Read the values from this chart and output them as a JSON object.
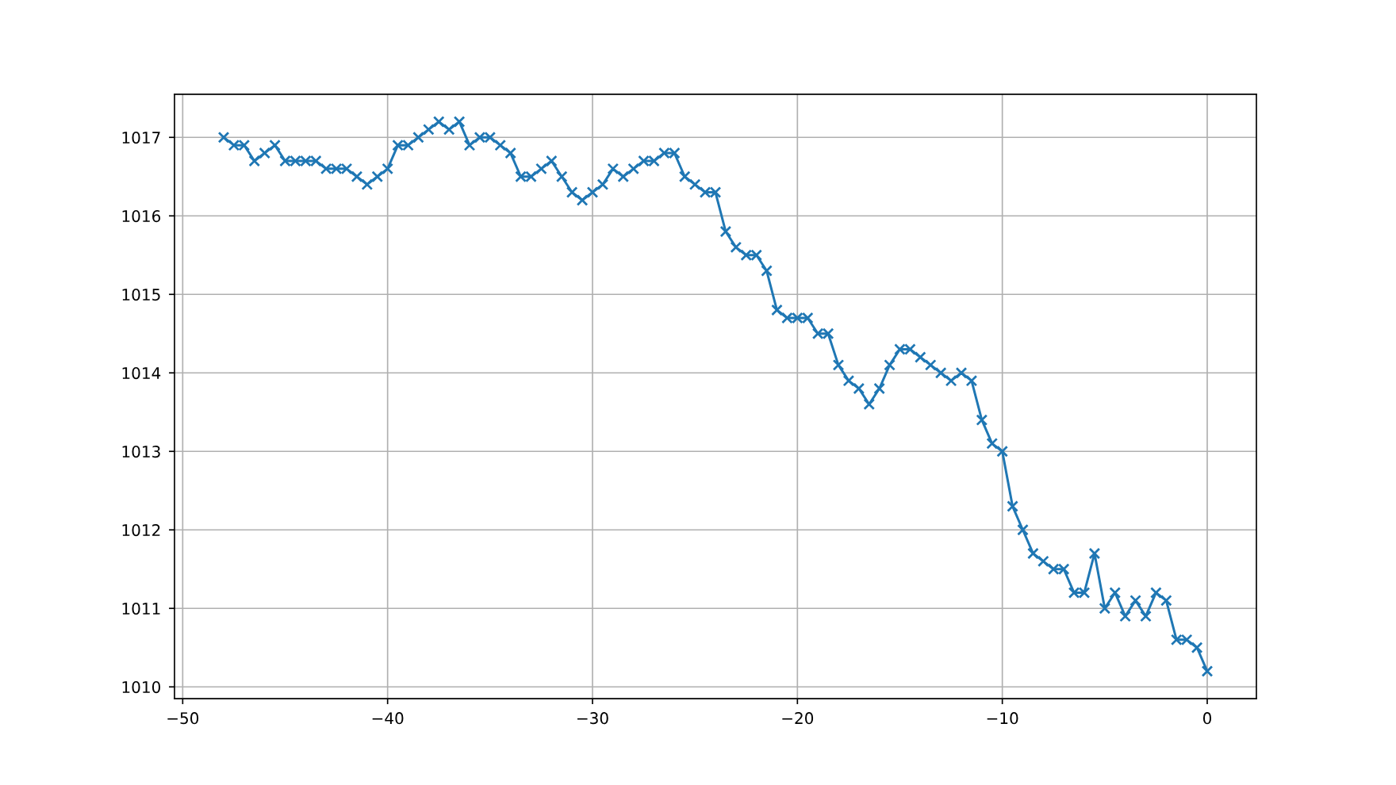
{
  "chart_data": {
    "type": "line",
    "x": [
      -48,
      -47.5,
      -47,
      -46.5,
      -46,
      -45.5,
      -45,
      -44.5,
      -44,
      -43.5,
      -43,
      -42.5,
      -42,
      -41.5,
      -41,
      -40.5,
      -40,
      -39.5,
      -39,
      -38.5,
      -38,
      -37.5,
      -37,
      -36.5,
      -36,
      -35.5,
      -35,
      -34.5,
      -34,
      -33.5,
      -33,
      -32.5,
      -32,
      -31.5,
      -31,
      -30.5,
      -30,
      -29.5,
      -29,
      -28.5,
      -28,
      -27.5,
      -27,
      -26.5,
      -26,
      -25.5,
      -25,
      -24.5,
      -24,
      -23.5,
      -23,
      -22.5,
      -22,
      -21.5,
      -21,
      -20.5,
      -20,
      -19.5,
      -19,
      -18.5,
      -18,
      -17.5,
      -17,
      -16.5,
      -16,
      -15.5,
      -15,
      -14.5,
      -14,
      -13.5,
      -13,
      -12.5,
      -12,
      -11.5,
      -11,
      -10.5,
      -10,
      -9.5,
      -9,
      -8.5,
      -8,
      -7.5,
      -7,
      -6.5,
      -6,
      -5.5,
      -5,
      -4.5,
      -4,
      -3.5,
      -3,
      -2.5,
      -2,
      -1.5,
      -1,
      -0.5,
      0
    ],
    "values": [
      1017.0,
      1016.9,
      1016.9,
      1016.7,
      1016.8,
      1016.9,
      1016.7,
      1016.7,
      1016.7,
      1016.7,
      1016.6,
      1016.6,
      1016.6,
      1016.5,
      1016.4,
      1016.5,
      1016.6,
      1016.9,
      1016.9,
      1017.0,
      1017.1,
      1017.2,
      1017.1,
      1017.2,
      1016.9,
      1017.0,
      1017.0,
      1016.9,
      1016.8,
      1016.5,
      1016.5,
      1016.6,
      1016.7,
      1016.5,
      1016.3,
      1016.2,
      1016.3,
      1016.4,
      1016.6,
      1016.5,
      1016.6,
      1016.7,
      1016.7,
      1016.8,
      1016.8,
      1016.5,
      1016.4,
      1016.3,
      1016.3,
      1015.8,
      1015.6,
      1015.5,
      1015.5,
      1015.3,
      1014.8,
      1014.7,
      1014.7,
      1014.7,
      1014.5,
      1014.5,
      1014.1,
      1013.9,
      1013.8,
      1013.6,
      1013.8,
      1014.1,
      1014.3,
      1014.3,
      1014.2,
      1014.1,
      1014.0,
      1013.9,
      1014.0,
      1013.9,
      1013.4,
      1013.1,
      1013.0,
      1012.3,
      1012.0,
      1011.7,
      1011.6,
      1011.5,
      1011.5,
      1011.2,
      1011.2,
      1011.7,
      1011.0,
      1011.2,
      1010.9,
      1011.1,
      1010.9,
      1011.2,
      1011.1,
      1010.6,
      1010.6,
      1010.5,
      1010.2
    ],
    "color": "#1f77b4",
    "marker": "cross",
    "line_style": "solid",
    "xlim": [
      -50.4,
      2.4
    ],
    "ylim": [
      1009.85,
      1017.55
    ],
    "xticks": [
      -50,
      -40,
      -30,
      -20,
      -10,
      0
    ],
    "yticks": [
      1010,
      1011,
      1012,
      1013,
      1014,
      1015,
      1016,
      1017
    ],
    "grid": true
  }
}
